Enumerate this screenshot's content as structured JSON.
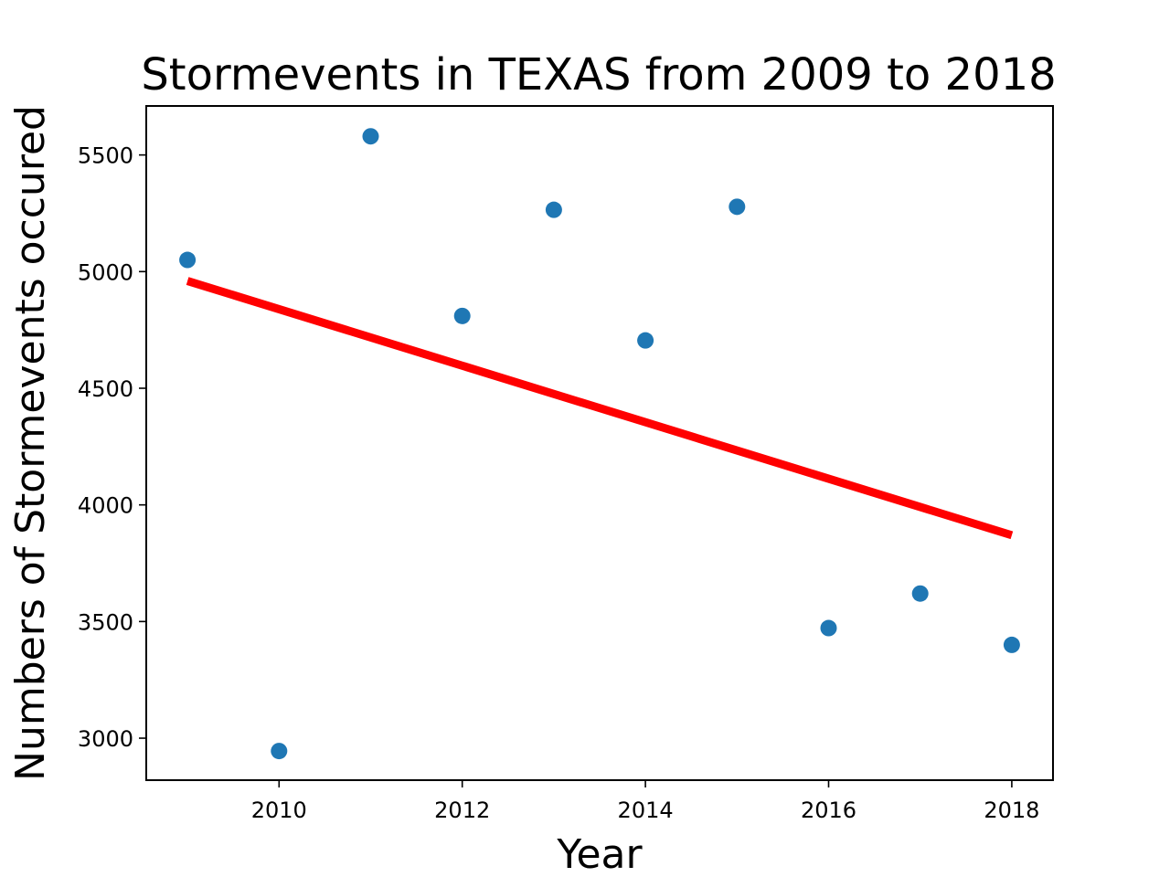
{
  "chart_data": {
    "type": "scatter",
    "title": "Stormevents in TEXAS from 2009 to 2018",
    "xlabel": "Year",
    "ylabel": "Numbers of Stormevents occured",
    "xlim": [
      2008.55,
      2018.45
    ],
    "ylim": [
      2820,
      5710
    ],
    "x_ticks": [
      2010,
      2012,
      2014,
      2016,
      2018
    ],
    "y_ticks": [
      3000,
      3500,
      4000,
      4500,
      5000,
      5500
    ],
    "grid": false,
    "points": {
      "x": [
        2009,
        2010,
        2011,
        2012,
        2013,
        2014,
        2015,
        2016,
        2017,
        2018
      ],
      "y": [
        5050,
        2945,
        5580,
        4810,
        5265,
        4705,
        5278,
        3472,
        3620,
        3400
      ],
      "color": "#1f77b4"
    },
    "trendline": {
      "x": [
        2009,
        2018
      ],
      "y": [
        4960,
        3870
      ],
      "color": "#ff0000"
    }
  }
}
